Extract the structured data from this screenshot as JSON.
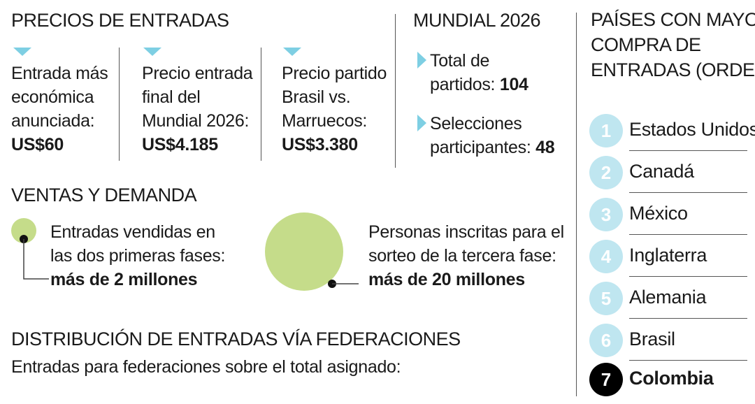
{
  "precios": {
    "title": "PRECIOS DE ENTRADAS",
    "items": [
      {
        "line1": "Entrada más",
        "line2": "económica",
        "line3": "anunciada:",
        "value": "US$60"
      },
      {
        "line1": "Precio entrada",
        "line2": "final del",
        "line3": "Mundial 2026:",
        "value": "US$4.185"
      },
      {
        "line1": "Precio partido",
        "line2": "Brasil vs.",
        "line3": "Marruecos:",
        "value": "US$3.380"
      }
    ]
  },
  "mundial": {
    "title": "MUNDIAL 2026",
    "items": [
      {
        "line1": "Total de",
        "line2": "partidos: ",
        "value": "104"
      },
      {
        "line1": "Selecciones",
        "line2": "participantes: ",
        "value": "48"
      }
    ]
  },
  "ventas": {
    "title": "VENTAS Y DEMANDA",
    "small": {
      "line1": "Entradas vendidas en",
      "line2": "las dos primeras fases:",
      "value": "más de 2 millones"
    },
    "large": {
      "line1": "Personas inscritas para el",
      "line2": "sorteo de la tercera fase:",
      "value": "más de 20 millones"
    },
    "circle_color": "#c5dc8a"
  },
  "distribucion": {
    "title": "DISTRIBUCIÓN DE ENTRADAS VÍA FEDERACIONES",
    "subtitle": "Entradas para federaciones sobre el total asignado:"
  },
  "paises": {
    "title_line1": "PAÍSES CON MAYOR",
    "title_line2": "COMPRA DE",
    "title_line3": "ENTRADAS (ORDEN)",
    "ranking": [
      {
        "rank": "1",
        "name": "Estados Unidos"
      },
      {
        "rank": "2",
        "name": "Canadá"
      },
      {
        "rank": "3",
        "name": "México"
      },
      {
        "rank": "4",
        "name": "Inglaterra"
      },
      {
        "rank": "5",
        "name": "Alemania"
      },
      {
        "rank": "6",
        "name": "Brasil"
      },
      {
        "rank": "7",
        "name": "Colombia"
      }
    ]
  },
  "colors": {
    "accent": "#7ecfe3",
    "rank_circle": "#bfe6f0",
    "highlight": "#000000",
    "green": "#c5dc8a"
  }
}
